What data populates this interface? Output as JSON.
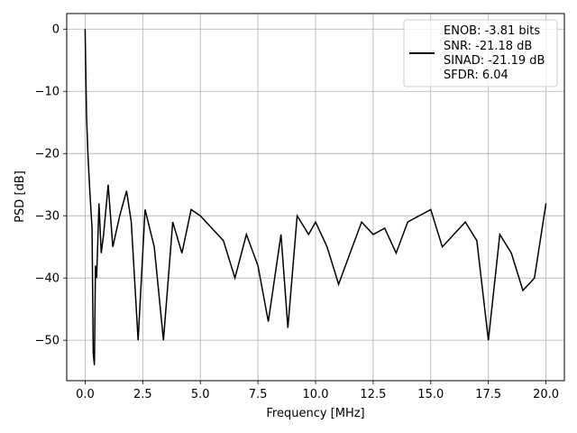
{
  "chart_data": {
    "type": "line",
    "xlabel": "Frequency [MHz]",
    "ylabel": "PSD [dB]",
    "xlim": [
      -0.8,
      20.8
    ],
    "ylim": [
      -56.5,
      2.5
    ],
    "x_ticks": [
      0.0,
      2.5,
      5.0,
      7.5,
      10.0,
      12.5,
      15.0,
      17.5,
      20.0
    ],
    "x_tick_labels": [
      "0.0",
      "2.5",
      "5.0",
      "7.5",
      "10.0",
      "12.5",
      "15.0",
      "17.5",
      "20.0"
    ],
    "y_ticks": [
      0,
      -10,
      -20,
      -30,
      -40,
      -50
    ],
    "y_tick_labels": [
      "0",
      "−10",
      "−20",
      "−30",
      "−40",
      "−50"
    ],
    "grid": true,
    "legend_position": "top-right",
    "line_color": "#000000",
    "legend": {
      "lines": [
        "ENOB: -3.81 bits",
        "SNR: -21.18 dB",
        "SINAD: -21.19 dB",
        "SFDR: 6.04"
      ]
    },
    "series": [
      {
        "x": [
          0.0,
          0.06,
          0.12,
          0.2,
          0.3,
          0.35,
          0.4,
          0.45,
          0.5,
          0.6,
          0.7,
          0.8,
          1.0,
          1.2,
          1.5,
          1.8,
          2.0,
          2.3,
          2.6,
          3.0,
          3.4,
          3.8,
          4.2,
          4.6,
          5.0,
          5.5,
          6.0,
          6.5,
          7.0,
          7.5,
          7.95,
          8.5,
          8.8,
          9.2,
          9.7,
          10.0,
          10.5,
          11.0,
          11.5,
          12.0,
          12.5,
          13.0,
          13.5,
          14.0,
          14.5,
          15.0,
          15.5,
          16.0,
          16.5,
          17.0,
          17.5,
          18.0,
          18.5,
          19.0,
          19.5,
          20.0
        ],
        "y": [
          0.0,
          -14,
          -20,
          -26,
          -32,
          -52,
          -54,
          -38,
          -40,
          -28,
          -36,
          -33,
          -25,
          -35,
          -30,
          -26,
          -31,
          -50,
          -29,
          -35,
          -50,
          -31,
          -36,
          -29,
          -30,
          -32,
          -34,
          -40,
          -33,
          -38,
          -47,
          -33,
          -48,
          -30,
          -33,
          -31,
          -35,
          -41,
          -36,
          -31,
          -33,
          -32,
          -36,
          -31,
          -30,
          -29,
          -35,
          -33,
          -31,
          -34,
          -50,
          -33,
          -36,
          -42,
          -40,
          -28
        ]
      }
    ]
  }
}
